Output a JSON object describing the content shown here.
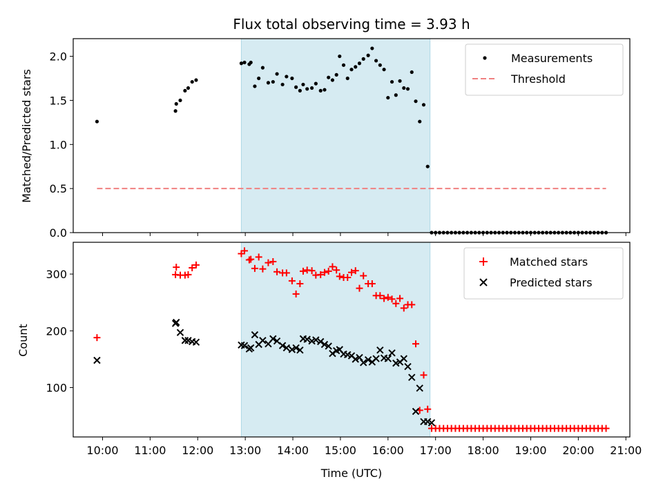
{
  "chart_data": [
    {
      "type": "scatter",
      "title": "Flux total observing time = 3.93 h",
      "xlabel": "",
      "ylabel": "Matched/Predicted stars",
      "xlim": [
        "09:23",
        "21:05"
      ],
      "ylim": [
        0,
        2.2
      ],
      "yticks": [
        0.0,
        0.5,
        1.0,
        1.5,
        2.0
      ],
      "ytick_labels": [
        "0.0",
        "0.5",
        "1.0",
        "1.5",
        "2.0"
      ],
      "grid": false,
      "legend_position": "top-right",
      "highlight_span": [
        "12:55",
        "16:53"
      ],
      "series": [
        {
          "name": "Measurements",
          "marker": "dot",
          "color": "#000000",
          "x": [
            "09:53",
            "11:32",
            "11:33",
            "11:38",
            "11:44",
            "11:48",
            "11:53",
            "11:58",
            "12:55",
            "12:59",
            "13:05",
            "13:07",
            "13:12",
            "13:17",
            "13:22",
            "13:29",
            "13:35",
            "13:40",
            "13:47",
            "13:52",
            "13:59",
            "14:04",
            "14:09",
            "14:13",
            "14:18",
            "14:24",
            "14:29",
            "14:35",
            "14:40",
            "14:45",
            "14:50",
            "14:55",
            "14:59",
            "15:04",
            "15:09",
            "15:14",
            "15:19",
            "15:24",
            "15:29",
            "15:35",
            "15:40",
            "15:45",
            "15:50",
            "15:55",
            "16:00",
            "16:05",
            "16:10",
            "16:15",
            "16:20",
            "16:25",
            "16:30",
            "16:35",
            "16:40",
            "16:45",
            "16:50",
            "16:55",
            "17:00",
            "17:05",
            "17:10",
            "17:15",
            "17:20",
            "17:25",
            "17:30",
            "17:35",
            "17:40",
            "17:45",
            "17:50",
            "17:55",
            "18:00",
            "18:05",
            "18:10",
            "18:15",
            "18:20",
            "18:25",
            "18:30",
            "18:35",
            "18:40",
            "18:45",
            "18:50",
            "18:55",
            "19:00",
            "19:05",
            "19:10",
            "19:15",
            "19:20",
            "19:25",
            "19:30",
            "19:35",
            "19:40",
            "19:45",
            "19:50",
            "19:55",
            "20:00",
            "20:05",
            "20:10",
            "20:15",
            "20:20",
            "20:25",
            "20:30",
            "20:35"
          ],
          "y": [
            1.26,
            1.38,
            1.46,
            1.5,
            1.61,
            1.64,
            1.71,
            1.73,
            1.92,
            1.93,
            1.91,
            1.93,
            1.66,
            1.75,
            1.87,
            1.7,
            1.71,
            1.8,
            1.68,
            1.77,
            1.75,
            1.65,
            1.61,
            1.68,
            1.63,
            1.64,
            1.69,
            1.61,
            1.62,
            1.76,
            1.73,
            1.79,
            2.0,
            1.9,
            1.75,
            1.85,
            1.88,
            1.92,
            1.97,
            2.01,
            2.09,
            1.95,
            1.9,
            1.85,
            1.53,
            1.71,
            1.56,
            1.72,
            1.64,
            1.63,
            1.82,
            1.49,
            1.26,
            1.45,
            0.75,
            0,
            0,
            0,
            0,
            0,
            0,
            0,
            0,
            0,
            0,
            0,
            0,
            0,
            0,
            0,
            0,
            0,
            0,
            0,
            0,
            0,
            0,
            0,
            0,
            0,
            0,
            0,
            0,
            0,
            0,
            0,
            0,
            0,
            0,
            0,
            0,
            0,
            0,
            0,
            0,
            0,
            0,
            0,
            0,
            0
          ]
        },
        {
          "name": "Threshold",
          "line_style": "dashed",
          "color": "#f08080",
          "x": [
            "09:53",
            "20:35"
          ],
          "y": [
            0.5,
            0.5
          ]
        }
      ]
    },
    {
      "type": "scatter",
      "title": "",
      "xlabel": "Time (UTC)",
      "ylabel": "Count",
      "xlim": [
        "09:23",
        "21:05"
      ],
      "ylim": [
        13,
        356
      ],
      "yticks": [
        100,
        200,
        300
      ],
      "ytick_labels": [
        "100",
        "200",
        "300"
      ],
      "xticks": [
        "10:00",
        "11:00",
        "12:00",
        "13:00",
        "14:00",
        "15:00",
        "16:00",
        "17:00",
        "18:00",
        "19:00",
        "20:00",
        "21:00"
      ],
      "grid": false,
      "legend_position": "top-right",
      "highlight_span": [
        "12:55",
        "16:53"
      ],
      "series": [
        {
          "name": "Matched stars",
          "marker": "plus",
          "color": "#ff0000",
          "x": [
            "09:53",
            "11:32",
            "11:33",
            "11:38",
            "11:44",
            "11:48",
            "11:53",
            "11:58",
            "12:55",
            "12:59",
            "13:05",
            "13:07",
            "13:12",
            "13:17",
            "13:22",
            "13:29",
            "13:35",
            "13:40",
            "13:47",
            "13:52",
            "13:59",
            "14:04",
            "14:09",
            "14:13",
            "14:18",
            "14:24",
            "14:29",
            "14:35",
            "14:40",
            "14:45",
            "14:50",
            "14:55",
            "14:59",
            "15:04",
            "15:09",
            "15:14",
            "15:19",
            "15:24",
            "15:29",
            "15:35",
            "15:40",
            "15:45",
            "15:50",
            "15:55",
            "16:00",
            "16:05",
            "16:10",
            "16:15",
            "16:20",
            "16:25",
            "16:30",
            "16:35",
            "16:40",
            "16:45",
            "16:50",
            "16:55",
            "17:00",
            "17:05",
            "17:10",
            "17:15",
            "17:20",
            "17:25",
            "17:30",
            "17:35",
            "17:40",
            "17:45",
            "17:50",
            "17:55",
            "18:00",
            "18:05",
            "18:10",
            "18:15",
            "18:20",
            "18:25",
            "18:30",
            "18:35",
            "18:40",
            "18:45",
            "18:50",
            "18:55",
            "19:00",
            "19:05",
            "19:10",
            "19:15",
            "19:20",
            "19:25",
            "19:30",
            "19:35",
            "19:40",
            "19:45",
            "19:50",
            "19:55",
            "20:00",
            "20:05",
            "20:10",
            "20:15",
            "20:20",
            "20:25",
            "20:30",
            "20:35"
          ],
          "y": [
            188,
            299,
            312,
            298,
            298,
            299,
            311,
            316,
            336,
            341,
            325,
            326,
            310,
            330,
            309,
            320,
            322,
            304,
            302,
            302,
            288,
            265,
            283,
            305,
            307,
            306,
            298,
            299,
            303,
            305,
            313,
            307,
            296,
            294,
            294,
            303,
            306,
            275,
            297,
            283,
            283,
            262,
            262,
            257,
            259,
            256,
            248,
            257,
            240,
            246,
            246,
            177,
            60,
            122,
            62,
            28,
            28,
            28,
            28,
            28,
            28,
            28,
            28,
            28,
            28,
            28,
            28,
            28,
            28,
            28,
            28,
            28,
            28,
            28,
            28,
            28,
            28,
            28,
            28,
            28,
            28,
            28,
            28,
            28,
            28,
            28,
            28,
            28,
            28,
            28,
            28,
            28,
            28,
            28,
            28,
            28,
            28,
            28,
            28,
            28
          ]
        },
        {
          "name": "Predicted stars",
          "marker": "x",
          "color": "#000000",
          "x": [
            "09:53",
            "11:32",
            "11:33",
            "11:38",
            "11:44",
            "11:48",
            "11:53",
            "11:58",
            "12:55",
            "12:59",
            "13:05",
            "13:07",
            "13:12",
            "13:17",
            "13:22",
            "13:29",
            "13:35",
            "13:40",
            "13:47",
            "13:52",
            "13:59",
            "14:04",
            "14:09",
            "14:13",
            "14:18",
            "14:24",
            "14:29",
            "14:35",
            "14:40",
            "14:45",
            "14:50",
            "14:55",
            "14:59",
            "15:04",
            "15:09",
            "15:14",
            "15:19",
            "15:24",
            "15:29",
            "15:35",
            "15:40",
            "15:45",
            "15:50",
            "15:55",
            "16:00",
            "16:05",
            "16:10",
            "16:15",
            "16:20",
            "16:25",
            "16:30",
            "16:35",
            "16:40",
            "16:45",
            "16:50",
            "16:55"
          ],
          "y": [
            148,
            213,
            215,
            197,
            183,
            183,
            181,
            180,
            175,
            174,
            168,
            170,
            193,
            176,
            183,
            177,
            186,
            182,
            174,
            170,
            167,
            170,
            166,
            186,
            185,
            182,
            184,
            181,
            176,
            173,
            160,
            165,
            167,
            159,
            158,
            156,
            150,
            153,
            144,
            149,
            145,
            151,
            166,
            152,
            151,
            161,
            143,
            145,
            151,
            137,
            118,
            58,
            99,
            40,
            40,
            38
          ]
        }
      ]
    }
  ]
}
